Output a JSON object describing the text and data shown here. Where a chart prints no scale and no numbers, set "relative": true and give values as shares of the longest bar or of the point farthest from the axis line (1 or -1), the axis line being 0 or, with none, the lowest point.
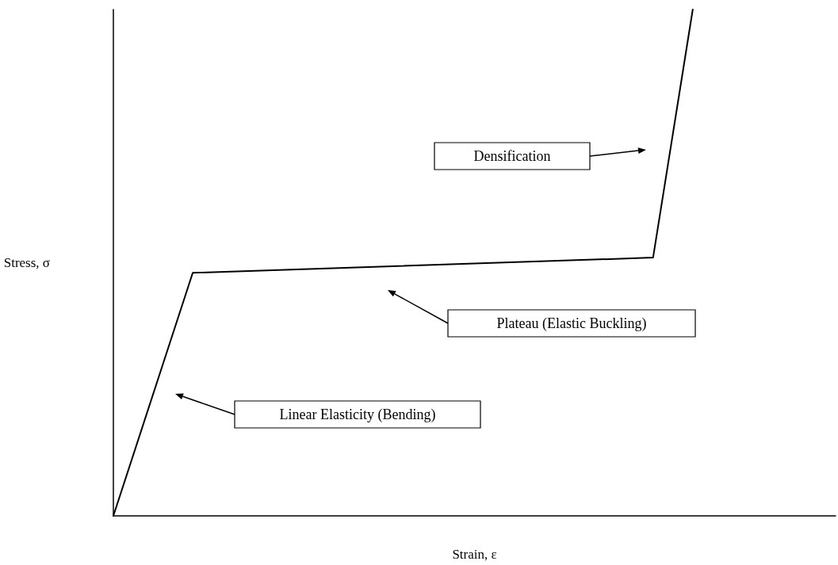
{
  "chart_data": {
    "type": "line",
    "relative": true,
    "xlabel": "Strain, ε",
    "ylabel": "Stress, σ",
    "categories": [
      null,
      null,
      null,
      null,
      null,
      null,
      null,
      null,
      null,
      null,
      null,
      null,
      null,
      null,
      null,
      null,
      null,
      null,
      null,
      null,
      null,
      null,
      null,
      null,
      null,
      null,
      null,
      null,
      null,
      null,
      null,
      null,
      null,
      null,
      null,
      null,
      null,
      null,
      null,
      null,
      null,
      null,
      null,
      null,
      null,
      null,
      null,
      null,
      null,
      null,
      null,
      null,
      null,
      null,
      null,
      null,
      null,
      null,
      null,
      null,
      null,
      null,
      null,
      null,
      null,
      null,
      null,
      null,
      null,
      null,
      null,
      null,
      null,
      null,
      null,
      null,
      null,
      null,
      null,
      null,
      null,
      null,
      null,
      null,
      null,
      null,
      null,
      null,
      null,
      null,
      null,
      null
    ],
    "series": [
      {
        "color": "#000000",
        "values": [
          0,
          null,
          null,
          null,
          null,
          null,
          null,
          null,
          null,
          null,
          0.48,
          null,
          null,
          null,
          null,
          null,
          null,
          null,
          null,
          null,
          null,
          null,
          null,
          null,
          null,
          null,
          null,
          null,
          null,
          null,
          null,
          null,
          null,
          null,
          null,
          null,
          null,
          null,
          null,
          null,
          null,
          null,
          null,
          null,
          null,
          null,
          null,
          null,
          null,
          null,
          null,
          null,
          null,
          null,
          null,
          null,
          null,
          null,
          null,
          null,
          null,
          null,
          null,
          null,
          null,
          null,
          null,
          null,
          0.51,
          null,
          null,
          null,
          null,
          1,
          null,
          null,
          null,
          null,
          null,
          null,
          null,
          null,
          null,
          null,
          null,
          null,
          null,
          null,
          null,
          null,
          null,
          null
        ]
      }
    ],
    "marker": "none",
    "line_style": "solid",
    "annotations": [
      "Densification",
      "Plateau (Elastic Buckling)",
      "Linear Elasticity (Bending)"
    ]
  }
}
